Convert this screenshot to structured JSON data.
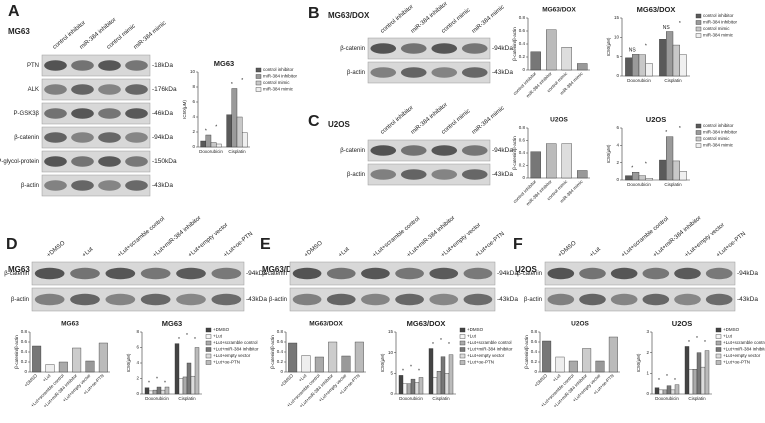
{
  "panels": [
    {
      "label": "A",
      "blot": {
        "title": "MG63",
        "lanes": [
          "control inhibitor",
          "miR-384 inhibitor",
          "control mimic",
          "miR-384 mimic"
        ],
        "rows": [
          {
            "protein": "PTN",
            "size": "-18kDa"
          },
          {
            "protein": "ALK",
            "size": "-176kDa"
          },
          {
            "protein": "P-GSK3β",
            "size": "-46kDa"
          },
          {
            "protein": "β-catenin",
            "size": "-94kDa"
          },
          {
            "protein": "P-glycol-protein",
            "size": "-150kDa"
          },
          {
            "protein": "β-actin",
            "size": "-43kDa"
          }
        ]
      }
    },
    {
      "label": "B",
      "blot": {
        "title": "MG63/DOX",
        "lanes": [
          "control inhibitor",
          "miR-384 inhibitor",
          "control mimic",
          "miR-384 mimic"
        ],
        "rows": [
          {
            "protein": "β-catenin",
            "size": "-94kDa"
          },
          {
            "protein": "β-actin",
            "size": "-43kDa"
          }
        ]
      }
    },
    {
      "label": "C",
      "blot": {
        "title": "U2OS",
        "lanes": [
          "control inhibitor",
          "miR-384 inhibitor",
          "control mimic",
          "miR-384 mimic"
        ],
        "rows": [
          {
            "protein": "β-catenin",
            "size": "-94kDa"
          },
          {
            "protein": "β-actin",
            "size": "-43kDa"
          }
        ]
      }
    },
    {
      "label": "D",
      "blot": {
        "title": "MG63",
        "lanes": [
          "+DMSO",
          "+Lut",
          "+Lut+scramble control",
          "+Lut+miR-384 inhibitor",
          "+Lut+empty vector",
          "+Lut+oe-PTN"
        ],
        "rows": [
          {
            "protein": "β-catenin",
            "size": "-94kDa"
          },
          {
            "protein": "β-actin",
            "size": "-43kDa"
          }
        ]
      }
    },
    {
      "label": "E",
      "blot": {
        "title": "MG63/DOX",
        "lanes": [
          "+DMSO",
          "+Lut",
          "+Lut+scramble control",
          "+Lut+miR-384 inhibitor",
          "+Lut+empty vector",
          "+Lut+oe-PTN"
        ],
        "rows": [
          {
            "protein": "β-catenin",
            "size": "-94kDa"
          },
          {
            "protein": "β-actin",
            "size": "-43kDa"
          }
        ]
      }
    },
    {
      "label": "F",
      "blot": {
        "title": "U2OS",
        "lanes": [
          "+DMSO",
          "+Lut",
          "+Lut+scramble control",
          "+Lut+miR-384 inhibitor",
          "+Lut+empty vector",
          "+Lut+oe-PTN"
        ],
        "rows": [
          {
            "protein": "β-catenin",
            "size": "-94kDa"
          },
          {
            "protein": "β-actin",
            "size": "-43kDa"
          }
        ]
      }
    }
  ],
  "chart_data": [
    {
      "type": "grouped_bar",
      "title": "MG63",
      "ylabel": "IC50(μM)",
      "categories": [
        "Doxorubicin",
        "Cisplatin"
      ],
      "series": [
        {
          "name": "control inhibitor",
          "color": "#5a5a5a",
          "values": [
            0.8,
            4.3
          ]
        },
        {
          "name": "miR-384 inhibitor",
          "color": "#9a9a9a",
          "values": [
            1.6,
            7.8
          ]
        },
        {
          "name": "control mimic",
          "color": "#c8c8c8",
          "values": [
            0.6,
            4.0
          ]
        },
        {
          "name": "miR-384 mimic",
          "color": "#f0f0f0",
          "values": [
            0.4,
            1.9
          ]
        }
      ],
      "ylim": [
        0,
        10
      ],
      "yticks": [
        0,
        2,
        4,
        6,
        8,
        10
      ],
      "significance": [
        "*",
        "*",
        "*",
        "*"
      ]
    },
    {
      "type": "bar",
      "title": "MG63/DOX",
      "ylabel": "β-catenin/β-actin",
      "categories": [
        "control inhibitor",
        "miR-384 inhibitor",
        "control mimic",
        "miR-384 mimic"
      ],
      "values": [
        0.28,
        0.62,
        0.35,
        0.1
      ],
      "colors": [
        "#777",
        "#bbb",
        "#ddd",
        "#999"
      ],
      "ylim": [
        0,
        0.8
      ],
      "yticks": [
        0,
        0.2,
        0.4,
        0.6,
        0.8
      ]
    },
    {
      "type": "grouped_bar",
      "title": "MG63/DOX",
      "ylabel": "IC50(μM)",
      "categories": [
        "Doxorubicin",
        "Cisplatin"
      ],
      "series": [
        {
          "name": "control inhibitor",
          "color": "#5a5a5a",
          "values": [
            4.7,
            9.5
          ]
        },
        {
          "name": "miR-384 inhibitor",
          "color": "#9a9a9a",
          "values": [
            5.6,
            11.5
          ]
        },
        {
          "name": "control mimic",
          "color": "#c8c8c8",
          "values": [
            5.5,
            8
          ]
        },
        {
          "name": "miR-384 mimic",
          "color": "#f0f0f0",
          "values": [
            3.2,
            5.5
          ]
        }
      ],
      "ylim": [
        0,
        15
      ],
      "yticks": [
        0,
        5,
        10,
        15
      ],
      "significance": [
        "NS",
        "*",
        "NS",
        "*"
      ]
    },
    {
      "type": "bar",
      "title": "U2OS",
      "ylabel": "β-catenin/β-actin",
      "categories": [
        "control inhibitor",
        "miR-384 inhibitor",
        "control mimic",
        "miR-384 mimic"
      ],
      "values": [
        0.42,
        0.55,
        0.55,
        0.12
      ],
      "colors": [
        "#777",
        "#bbb",
        "#ddd",
        "#999"
      ],
      "ylim": [
        0,
        0.8
      ],
      "yticks": [
        0,
        0.2,
        0.4,
        0.6,
        0.8
      ]
    },
    {
      "type": "grouped_bar",
      "title": "U2OS",
      "ylabel": "IC50(μM)",
      "categories": [
        "Doxorubicin",
        "Cisplatin"
      ],
      "series": [
        {
          "name": "control inhibitor",
          "color": "#5a5a5a",
          "values": [
            0.5,
            2.3
          ]
        },
        {
          "name": "miR-384 inhibitor",
          "color": "#9a9a9a",
          "values": [
            0.9,
            5.0
          ]
        },
        {
          "name": "control mimic",
          "color": "#c8c8c8",
          "values": [
            0.5,
            2.2
          ]
        },
        {
          "name": "miR-384 mimic",
          "color": "#f0f0f0",
          "values": [
            0.2,
            1.0
          ]
        }
      ],
      "ylim": [
        0,
        6
      ],
      "yticks": [
        0,
        2,
        4,
        6
      ],
      "significance": [
        "*",
        "*",
        "*",
        "*"
      ]
    },
    {
      "type": "bar",
      "title": "MG63",
      "ylabel": "β-catenin/β-actin",
      "categories": [
        "+DMSO",
        "+Lut",
        "+Lut+scramble control",
        "+Lut+miR-384 inhibitor",
        "+Lut+empty vector",
        "+Lut+oe-PTN"
      ],
      "values": [
        0.52,
        0.15,
        0.2,
        0.48,
        0.22,
        0.58
      ],
      "colors": [
        "#777",
        "#eee",
        "#aaa",
        "#ccc",
        "#999",
        "#bbb"
      ],
      "ylim": [
        0,
        0.8
      ],
      "yticks": [
        0,
        0.2,
        0.4,
        0.6,
        0.8
      ]
    },
    {
      "type": "grouped_bar",
      "title": "MG63",
      "ylabel": "IC50(μM)",
      "categories": [
        "Doxorubicin",
        "Cisplatin"
      ],
      "series": [
        {
          "name": "+DMSO",
          "color": "#444",
          "values": [
            0.8,
            6.5
          ]
        },
        {
          "name": "+Lut",
          "color": "#f5f5f5",
          "values": [
            0.4,
            2
          ]
        },
        {
          "name": "+Lut+scramble control",
          "color": "#aaa",
          "values": [
            0.5,
            2.2
          ]
        },
        {
          "name": "+Lut+miR-384 inhibitor",
          "color": "#777",
          "values": [
            0.9,
            4
          ]
        },
        {
          "name": "+Lut+empty vector",
          "color": "#ddd",
          "values": [
            0.5,
            2.3
          ]
        },
        {
          "name": "+Lut+oe-PTN",
          "color": "#bbb",
          "values": [
            0.9,
            6
          ]
        }
      ],
      "ylim": [
        0,
        8
      ],
      "yticks": [
        0,
        2,
        4,
        6,
        8
      ],
      "significance": [
        "*",
        "*",
        "*",
        "*",
        "*",
        "*"
      ]
    },
    {
      "type": "bar",
      "title": "MG63/DOX",
      "ylabel": "β-catenin/β-actin",
      "categories": [
        "+DMSO",
        "+Lut",
        "+Lut+scramble control",
        "+Lut+miR-384 inhibitor",
        "+Lut+empty vector",
        "+Lut+oe-PTN"
      ],
      "values": [
        0.58,
        0.33,
        0.3,
        0.6,
        0.32,
        0.6
      ],
      "colors": [
        "#777",
        "#eee",
        "#aaa",
        "#ccc",
        "#999",
        "#bbb"
      ],
      "ylim": [
        0,
        0.8
      ],
      "yticks": [
        0,
        0.2,
        0.4,
        0.6,
        0.8
      ]
    },
    {
      "type": "grouped_bar",
      "title": "MG63/DOX",
      "ylabel": "IC50(μM)",
      "categories": [
        "Doxorubicin",
        "Cisplatin"
      ],
      "series": [
        {
          "name": "+DMSO",
          "color": "#444",
          "values": [
            4.5,
            11
          ]
        },
        {
          "name": "+Lut",
          "color": "#f5f5f5",
          "values": [
            2.5,
            4
          ]
        },
        {
          "name": "+Lut+scramble control",
          "color": "#aaa",
          "values": [
            2.5,
            5.5
          ]
        },
        {
          "name": "+Lut+miR-384 inhibitor",
          "color": "#777",
          "values": [
            3.6,
            9
          ]
        },
        {
          "name": "+Lut+empty vector",
          "color": "#ddd",
          "values": [
            2.8,
            5
          ]
        },
        {
          "name": "+Lut+oe-PTN",
          "color": "#bbb",
          "values": [
            4,
            9.5
          ]
        }
      ],
      "ylim": [
        0,
        15
      ],
      "yticks": [
        0,
        5,
        10,
        15
      ],
      "significance": [
        "*",
        "*",
        "*",
        "*",
        "*",
        "*"
      ]
    },
    {
      "type": "bar",
      "title": "U2OS",
      "ylabel": "β-catenin/β-actin",
      "categories": [
        "+DMSO",
        "+Lut",
        "+Lut+scramble control",
        "+Lut+miR-384 inhibitor",
        "+Lut+empty vector",
        "+Lut+oe-PTN"
      ],
      "values": [
        0.62,
        0.3,
        0.22,
        0.47,
        0.22,
        0.7
      ],
      "colors": [
        "#777",
        "#eee",
        "#aaa",
        "#ccc",
        "#999",
        "#bbb"
      ],
      "ylim": [
        0,
        0.8
      ],
      "yticks": [
        0,
        0.2,
        0.4,
        0.6,
        0.8
      ]
    },
    {
      "type": "grouped_bar",
      "title": "U2OS",
      "ylabel": "IC50(μM)",
      "categories": [
        "Doxorubicin",
        "Cisplatin"
      ],
      "series": [
        {
          "name": "+DMSO",
          "color": "#444",
          "values": [
            0.3,
            2.3
          ]
        },
        {
          "name": "+Lut",
          "color": "#f5f5f5",
          "values": [
            0.2,
            1.2
          ]
        },
        {
          "name": "+Lut+scramble control",
          "color": "#aaa",
          "values": [
            0.2,
            1.2
          ]
        },
        {
          "name": "+Lut+miR-384 inhibitor",
          "color": "#777",
          "values": [
            0.4,
            2.0
          ]
        },
        {
          "name": "+Lut+empty vector",
          "color": "#ddd",
          "values": [
            0.2,
            1.3
          ]
        },
        {
          "name": "+Lut+oe-PTN",
          "color": "#bbb",
          "values": [
            0.45,
            2.1
          ]
        }
      ],
      "ylim": [
        0,
        3
      ],
      "yticks": [
        0,
        1,
        2,
        3
      ],
      "significance": [
        "*",
        "*",
        "*",
        "*",
        "*",
        "*"
      ]
    }
  ]
}
